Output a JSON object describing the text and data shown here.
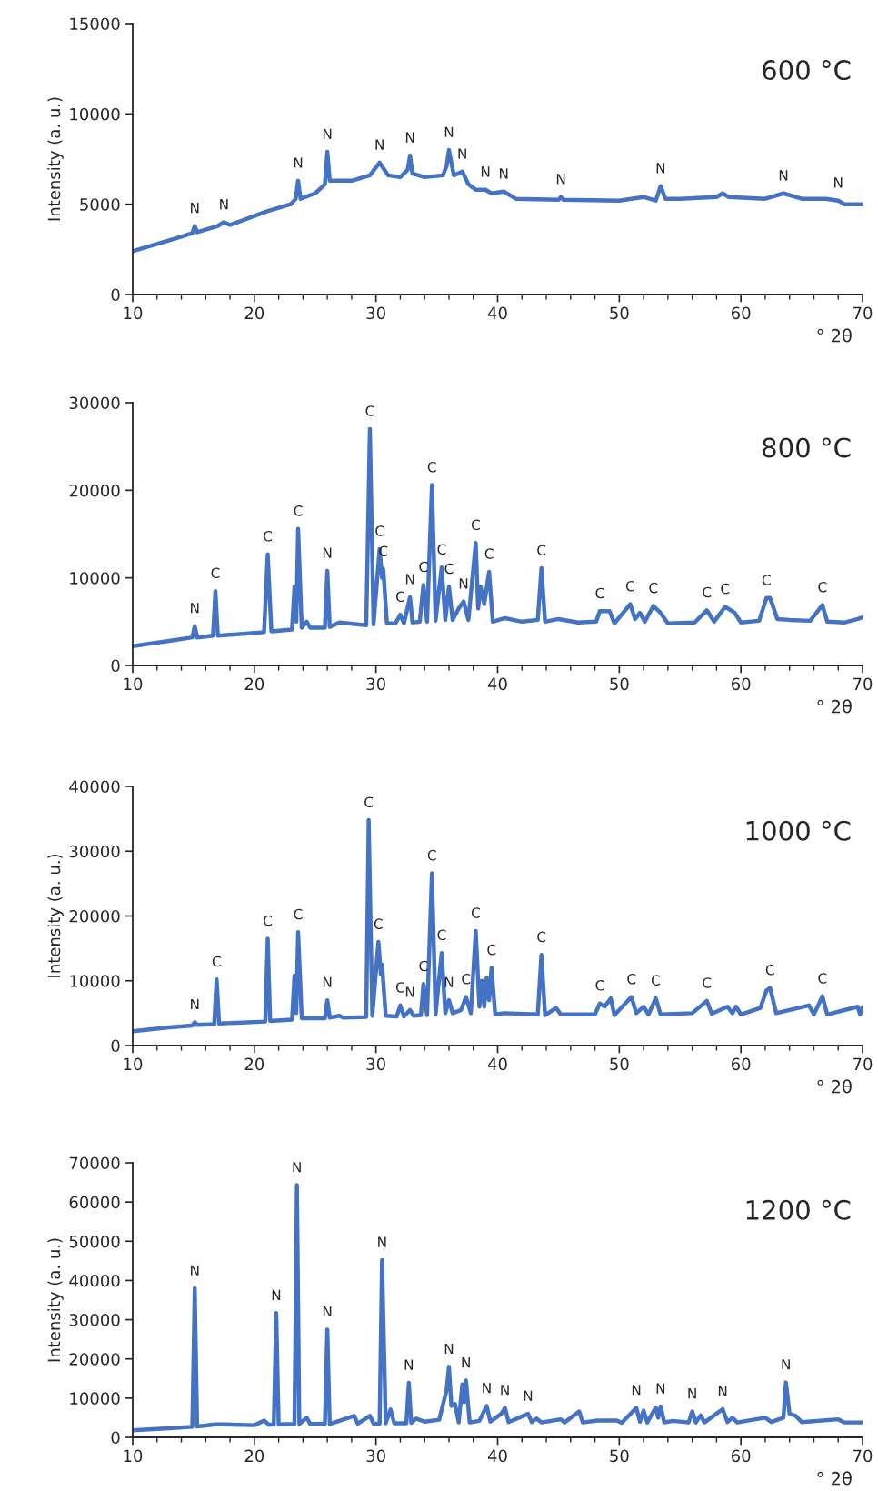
{
  "chart_data": [
    {
      "type": "line",
      "xlabel": "° 2θ",
      "ylabel": "Intensity (a. u.)",
      "xlim": [
        10,
        70
      ],
      "xticks": [
        10,
        20,
        30,
        40,
        50,
        60,
        70
      ],
      "ylim": [
        0,
        15000
      ],
      "yticks": [
        0,
        5000,
        10000,
        15000
      ],
      "series": [
        {
          "color": "#4472c4",
          "x": [
            10,
            12,
            14,
            14.9,
            15.1,
            15.3,
            17,
            17.5,
            18,
            19,
            21,
            23,
            23.4,
            23.6,
            23.8,
            25,
            25.8,
            26,
            26.2,
            28,
            29.5,
            30.3,
            31,
            32,
            32.6,
            32.8,
            33,
            34,
            35.5,
            35.8,
            36,
            36.4,
            37.1,
            37.6,
            38.2,
            39,
            39.5,
            40.5,
            41.5,
            45,
            45.2,
            45.4,
            50,
            52,
            53,
            53.4,
            53.8,
            55,
            58,
            58.5,
            59,
            62,
            63.5,
            65,
            67,
            68,
            68.5,
            70
          ],
          "values": [
            2400,
            2800,
            3200,
            3400,
            3800,
            3450,
            3800,
            4000,
            3850,
            4100,
            4600,
            5000,
            5300,
            6300,
            5300,
            5600,
            6100,
            7900,
            6300,
            6300,
            6600,
            7300,
            6600,
            6500,
            6900,
            7700,
            6700,
            6500,
            6600,
            7100,
            8000,
            6600,
            6800,
            6100,
            5800,
            5800,
            5600,
            5700,
            5300,
            5250,
            5400,
            5250,
            5200,
            5400,
            5200,
            6000,
            5300,
            5300,
            5400,
            5600,
            5400,
            5300,
            5600,
            5300,
            5300,
            5200,
            5000,
            5000
          ]
        }
      ],
      "annotations": [
        "600 °C",
        {
          "text": "N",
          "x": 15.1,
          "y": 3800
        },
        {
          "text": "N",
          "x": 17.5,
          "y": 4000
        },
        {
          "text": "N",
          "x": 23.6,
          "y": 6300
        },
        {
          "text": "N",
          "x": 26,
          "y": 7900
        },
        {
          "text": "N",
          "x": 30.3,
          "y": 7300
        },
        {
          "text": "N",
          "x": 32.8,
          "y": 7700
        },
        {
          "text": "N",
          "x": 36,
          "y": 8000
        },
        {
          "text": "N",
          "x": 37.1,
          "y": 6800
        },
        {
          "text": "N",
          "x": 39,
          "y": 5800
        },
        {
          "text": "N",
          "x": 40.5,
          "y": 5700
        },
        {
          "text": "N",
          "x": 45.2,
          "y": 5400
        },
        {
          "text": "N",
          "x": 53.4,
          "y": 6000
        },
        {
          "text": "N",
          "x": 63.5,
          "y": 5600
        },
        {
          "text": "N",
          "x": 68,
          "y": 5200
        }
      ]
    },
    {
      "type": "line",
      "xlabel": "° 2θ",
      "xlim": [
        10,
        70
      ],
      "xticks": [
        10,
        20,
        30,
        40,
        50,
        60,
        70
      ],
      "ylim": [
        0,
        30000
      ],
      "yticks": [
        0,
        10000,
        20000,
        30000
      ],
      "series": [
        {
          "color": "#4472c4",
          "x": [
            10,
            13,
            14.9,
            15.1,
            15.3,
            16.6,
            16.8,
            17,
            20.8,
            21.1,
            21.4,
            23.1,
            23.3,
            23.45,
            23.6,
            23.9,
            24.3,
            24.6,
            25.8,
            26,
            26.2,
            27,
            29.2,
            29.5,
            29.8,
            30.3,
            30.5,
            30.6,
            30.9,
            31.6,
            32,
            32.3,
            32.8,
            33,
            33.6,
            33.9,
            34.2,
            34.6,
            34.9,
            35.4,
            35.7,
            36,
            36.3,
            36.8,
            37.2,
            37.6,
            38.2,
            38.4,
            38.6,
            38.9,
            39.3,
            39.6,
            40.6,
            42,
            43.3,
            43.6,
            43.9,
            45,
            46.6,
            48.1,
            48.4,
            49.2,
            49.6,
            50.9,
            51.3,
            51.7,
            52.1,
            52.8,
            53.4,
            54,
            56.2,
            57.2,
            57.8,
            58.7,
            59.5,
            60,
            61.5,
            62.1,
            62.4,
            63,
            64,
            65.7,
            66.7,
            67.1,
            68.5,
            69.6,
            70
          ],
          "values": [
            2200,
            2800,
            3200,
            4500,
            3200,
            3400,
            8500,
            3400,
            3800,
            12700,
            3900,
            4100,
            9000,
            5000,
            15600,
            4300,
            5000,
            4300,
            4300,
            10800,
            4400,
            4900,
            4600,
            27000,
            4700,
            13300,
            10000,
            11000,
            4800,
            4800,
            5800,
            4800,
            7800,
            4900,
            5000,
            9200,
            5000,
            20600,
            5100,
            11200,
            5200,
            9000,
            5200,
            6500,
            7300,
            5200,
            14000,
            6500,
            9000,
            7000,
            10700,
            5000,
            5400,
            5000,
            5200,
            11100,
            5000,
            5300,
            4900,
            5000,
            6200,
            6200,
            4800,
            7000,
            5300,
            6000,
            5000,
            6800,
            6000,
            4800,
            4900,
            6300,
            5000,
            6700,
            6000,
            4900,
            5100,
            7700,
            7700,
            5300,
            5200,
            5100,
            6900,
            5000,
            4900,
            5300,
            5500
          ]
        }
      ],
      "annotations": [
        "800 °C",
        {
          "text": "N",
          "x": 15.1,
          "y": 4500
        },
        {
          "text": "C",
          "x": 16.8,
          "y": 8500
        },
        {
          "text": "C",
          "x": 21.1,
          "y": 12700
        },
        {
          "text": "C",
          "x": 23.6,
          "y": 15600
        },
        {
          "text": "N",
          "x": 26,
          "y": 10800
        },
        {
          "text": "C",
          "x": 29.5,
          "y": 27000
        },
        {
          "text": "C",
          "x": 30.3,
          "y": 13300
        },
        {
          "text": "C",
          "x": 30.6,
          "y": 11000
        },
        {
          "text": "C",
          "x": 32,
          "y": 5800
        },
        {
          "text": "N",
          "x": 32.8,
          "y": 7800
        },
        {
          "text": "C",
          "x": 33.9,
          "y": 9200
        },
        {
          "text": "C",
          "x": 34.6,
          "y": 20600
        },
        {
          "text": "C",
          "x": 35.4,
          "y": 11200
        },
        {
          "text": "C",
          "x": 36,
          "y": 9000
        },
        {
          "text": "N",
          "x": 37.2,
          "y": 7300
        },
        {
          "text": "C",
          "x": 38.2,
          "y": 14000
        },
        {
          "text": "C",
          "x": 39.3,
          "y": 10700
        },
        {
          "text": "C",
          "x": 43.6,
          "y": 11100
        },
        {
          "text": "C",
          "x": 48.4,
          "y": 6200
        },
        {
          "text": "C",
          "x": 50.9,
          "y": 7000
        },
        {
          "text": "C",
          "x": 52.8,
          "y": 6800
        },
        {
          "text": "C",
          "x": 57.2,
          "y": 6300
        },
        {
          "text": "C",
          "x": 58.7,
          "y": 6700
        },
        {
          "text": "C",
          "x": 62.1,
          "y": 7700
        },
        {
          "text": "C",
          "x": 66.7,
          "y": 6900
        }
      ]
    },
    {
      "type": "line",
      "xlabel": "° 2θ",
      "ylabel": "Intensity (a. u.)",
      "xlim": [
        10,
        70
      ],
      "xticks": [
        10,
        20,
        30,
        40,
        50,
        60,
        70
      ],
      "ylim": [
        0,
        40000
      ],
      "yticks": [
        0,
        10000,
        20000,
        30000,
        40000
      ],
      "series": [
        {
          "color": "#4472c4",
          "x": [
            10,
            13,
            14.9,
            15.1,
            15.3,
            16.7,
            16.9,
            17.1,
            20.9,
            21.1,
            21.3,
            23.1,
            23.3,
            23.45,
            23.6,
            23.9,
            25.8,
            26,
            26.2,
            27,
            27.3,
            29.2,
            29.4,
            29.7,
            30.2,
            30.4,
            30.5,
            30.8,
            31.7,
            32,
            32.3,
            32.8,
            33.1,
            33.7,
            33.9,
            34.2,
            34.6,
            34.9,
            35.4,
            35.7,
            36,
            36.3,
            37,
            37.4,
            37.8,
            38.2,
            38.5,
            38.7,
            38.9,
            39.1,
            39.3,
            39.5,
            39.8,
            40.5,
            43.3,
            43.6,
            43.9,
            44.8,
            45.2,
            48,
            48.4,
            48.8,
            49.3,
            49.6,
            51,
            51.4,
            52,
            52.4,
            53,
            53.4,
            56,
            57.2,
            57.6,
            58.9,
            59.3,
            59.6,
            60,
            61.6,
            62.1,
            62.4,
            62.9,
            65.6,
            66,
            66.7,
            67.1,
            69.6,
            69.8,
            70
          ],
          "values": [
            2200,
            2800,
            3100,
            3600,
            3200,
            3300,
            10200,
            3400,
            3700,
            16500,
            3800,
            4000,
            10800,
            5000,
            17500,
            4200,
            4200,
            7000,
            4300,
            4600,
            4300,
            4400,
            34800,
            4600,
            16000,
            11000,
            12500,
            4600,
            4500,
            6200,
            4500,
            5500,
            4600,
            4700,
            9500,
            4700,
            26600,
            4800,
            14300,
            5000,
            7000,
            5000,
            5500,
            7500,
            5000,
            17700,
            6000,
            10000,
            6000,
            10500,
            7000,
            12000,
            4800,
            5000,
            4800,
            14000,
            4700,
            5800,
            4800,
            4800,
            6500,
            6000,
            7300,
            4700,
            7500,
            5000,
            6000,
            4800,
            7300,
            4800,
            5000,
            6900,
            4900,
            6000,
            5000,
            6000,
            4800,
            5800,
            8500,
            8900,
            5000,
            6200,
            4800,
            7600,
            4800,
            6000,
            4800,
            5900
          ]
        }
      ],
      "annotations": [
        "1000 °C",
        {
          "text": "N",
          "x": 15.1,
          "y": 3600
        },
        {
          "text": "C",
          "x": 16.9,
          "y": 10200
        },
        {
          "text": "C",
          "x": 21.1,
          "y": 16500
        },
        {
          "text": "C",
          "x": 23.6,
          "y": 17500
        },
        {
          "text": "N",
          "x": 26,
          "y": 7000
        },
        {
          "text": "C",
          "x": 29.4,
          "y": 34800
        },
        {
          "text": "C",
          "x": 30.2,
          "y": 16000
        },
        {
          "text": "C",
          "x": 32,
          "y": 6200
        },
        {
          "text": "N",
          "x": 32.8,
          "y": 5500
        },
        {
          "text": "C",
          "x": 33.9,
          "y": 9500
        },
        {
          "text": "C",
          "x": 34.6,
          "y": 26600
        },
        {
          "text": "C",
          "x": 35.4,
          "y": 14300
        },
        {
          "text": "N",
          "x": 36,
          "y": 7000
        },
        {
          "text": "C",
          "x": 37.4,
          "y": 7500
        },
        {
          "text": "C",
          "x": 38.2,
          "y": 17700
        },
        {
          "text": "C",
          "x": 39.5,
          "y": 12000
        },
        {
          "text": "C",
          "x": 43.6,
          "y": 14000
        },
        {
          "text": "C",
          "x": 48.4,
          "y": 6500
        },
        {
          "text": "C",
          "x": 51,
          "y": 7500
        },
        {
          "text": "C",
          "x": 53,
          "y": 7300
        },
        {
          "text": "C",
          "x": 57.2,
          "y": 6900
        },
        {
          "text": "C",
          "x": 62.4,
          "y": 8900
        },
        {
          "text": "C",
          "x": 66.7,
          "y": 7600
        }
      ]
    },
    {
      "type": "line",
      "xlabel": "° 2θ",
      "ylabel": "Intensity (a. u.)",
      "xlim": [
        10,
        70
      ],
      "xticks": [
        10,
        20,
        30,
        40,
        50,
        60,
        70
      ],
      "ylim": [
        0,
        70000
      ],
      "yticks": [
        0,
        10000,
        20000,
        30000,
        40000,
        50000,
        60000,
        70000
      ],
      "series": [
        {
          "color": "#4472c4",
          "x": [
            10,
            13,
            14.9,
            15.1,
            15.3,
            16.8,
            17.5,
            20,
            20.8,
            21.2,
            21.6,
            21.8,
            22,
            23.3,
            23.5,
            23.7,
            24.3,
            24.6,
            25.8,
            26,
            26.2,
            28.2,
            28.5,
            29.5,
            29.8,
            30.3,
            30.5,
            30.8,
            31.2,
            31.5,
            32.5,
            32.7,
            32.9,
            33.3,
            34,
            35.2,
            35.8,
            36,
            36.2,
            36.5,
            36.8,
            37.1,
            37.25,
            37.4,
            37.7,
            38.5,
            39.1,
            39.4,
            40.3,
            40.6,
            40.9,
            42.5,
            42.8,
            43.2,
            43.6,
            45.2,
            45.5,
            46.7,
            47,
            48.2,
            49.8,
            50.2,
            51.4,
            51.7,
            52,
            52.3,
            53,
            53.2,
            53.4,
            53.7,
            54.4,
            55.7,
            56,
            56.3,
            56.7,
            57,
            58.5,
            58.9,
            59.3,
            59.7,
            62,
            62.5,
            63.5,
            63.7,
            64,
            64.5,
            65,
            68,
            68.5,
            70
          ],
          "values": [
            1800,
            2300,
            2700,
            38000,
            2800,
            3300,
            3300,
            3100,
            4300,
            3200,
            3300,
            31700,
            3300,
            3400,
            64300,
            3400,
            5000,
            3400,
            3400,
            27500,
            3400,
            5500,
            3500,
            5500,
            3500,
            3500,
            45200,
            3600,
            7100,
            3600,
            3600,
            13900,
            3700,
            4800,
            4000,
            4500,
            12000,
            18000,
            8000,
            8500,
            3800,
            13500,
            9000,
            14500,
            3800,
            4200,
            8000,
            4000,
            6000,
            7500,
            3900,
            6000,
            3900,
            4800,
            3800,
            4600,
            3800,
            6600,
            3800,
            4300,
            4300,
            3700,
            7500,
            4000,
            6800,
            3800,
            7600,
            5000,
            7900,
            3800,
            4200,
            3800,
            6600,
            3800,
            5600,
            3800,
            7200,
            3900,
            5000,
            3800,
            5000,
            3900,
            5000,
            14000,
            6000,
            5500,
            3900,
            4600,
            3800,
            3800
          ]
        }
      ],
      "annotations": [
        "1200 °C",
        {
          "text": "N",
          "x": 15.1,
          "y": 38000
        },
        {
          "text": "N",
          "x": 21.8,
          "y": 31700
        },
        {
          "text": "N",
          "x": 23.5,
          "y": 64300
        },
        {
          "text": "N",
          "x": 26,
          "y": 27500
        },
        {
          "text": "N",
          "x": 30.5,
          "y": 45200
        },
        {
          "text": "N",
          "x": 32.7,
          "y": 13900
        },
        {
          "text": "N",
          "x": 36,
          "y": 18000
        },
        {
          "text": "N",
          "x": 37.4,
          "y": 14500
        },
        {
          "text": "N",
          "x": 39.1,
          "y": 8000
        },
        {
          "text": "N",
          "x": 40.6,
          "y": 7500
        },
        {
          "text": "N",
          "x": 42.5,
          "y": 6000
        },
        {
          "text": "N",
          "x": 51.4,
          "y": 7500
        },
        {
          "text": "N",
          "x": 53.4,
          "y": 7900
        },
        {
          "text": "N",
          "x": 56,
          "y": 6600
        },
        {
          "text": "N",
          "x": 58.5,
          "y": 7200
        },
        {
          "text": "N",
          "x": 63.7,
          "y": 14000
        }
      ]
    }
  ]
}
